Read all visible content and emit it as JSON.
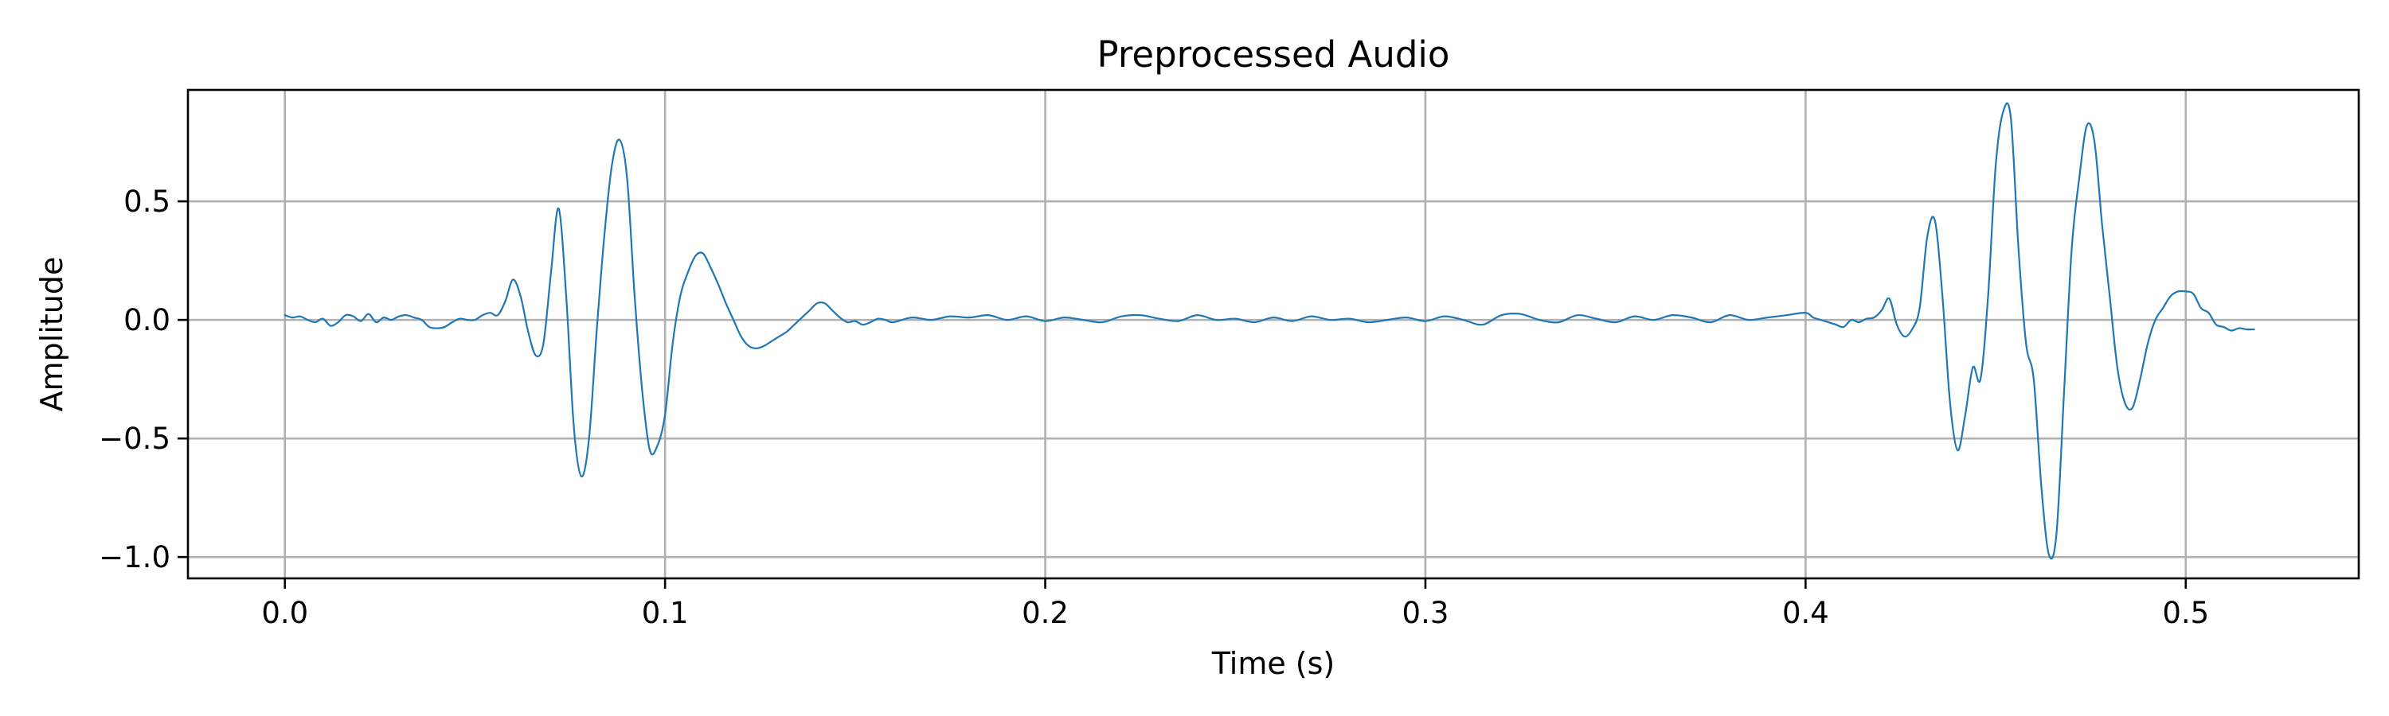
{
  "chart_data": {
    "type": "line",
    "title": "Preprocessed Audio",
    "xlabel": "Time (s)",
    "ylabel": "Amplitude",
    "xlim": [
      -0.0255,
      0.5455
    ],
    "ylim": [
      -1.09,
      0.97
    ],
    "xticks": [
      0.0,
      0.1,
      0.2,
      0.3,
      0.4,
      0.5
    ],
    "xtick_labels": [
      "0.0",
      "0.1",
      "0.2",
      "0.3",
      "0.4",
      "0.5"
    ],
    "yticks": [
      -1.0,
      -0.5,
      0.0,
      0.5
    ],
    "ytick_labels": [
      "−1.0",
      "−0.5",
      "0.0",
      "0.5"
    ],
    "grid": true,
    "legend": "none",
    "series_color": "#1f77b4",
    "series": [
      {
        "x": [
          0.0,
          0.002,
          0.004,
          0.006,
          0.008,
          0.01,
          0.012,
          0.014,
          0.016,
          0.018,
          0.02,
          0.022,
          0.024,
          0.026,
          0.028,
          0.03,
          0.032,
          0.034,
          0.036,
          0.038,
          0.04,
          0.042,
          0.044,
          0.046,
          0.048,
          0.05,
          0.052,
          0.054,
          0.056,
          0.058,
          0.06,
          0.062,
          0.064,
          0.066,
          0.068,
          0.07,
          0.072,
          0.074,
          0.076,
          0.078,
          0.08,
          0.082,
          0.084,
          0.086,
          0.088,
          0.09,
          0.092,
          0.094,
          0.096,
          0.098,
          0.1,
          0.102,
          0.104,
          0.106,
          0.108,
          0.11,
          0.112,
          0.114,
          0.116,
          0.118,
          0.12,
          0.122,
          0.124,
          0.126,
          0.128,
          0.13,
          0.132,
          0.134,
          0.136,
          0.138,
          0.14,
          0.142,
          0.144,
          0.146,
          0.148,
          0.15,
          0.152,
          0.154,
          0.156,
          0.158,
          0.16,
          0.165,
          0.17,
          0.175,
          0.18,
          0.185,
          0.19,
          0.195,
          0.2,
          0.205,
          0.21,
          0.215,
          0.22,
          0.225,
          0.23,
          0.235,
          0.24,
          0.245,
          0.25,
          0.255,
          0.26,
          0.265,
          0.27,
          0.275,
          0.28,
          0.285,
          0.29,
          0.295,
          0.3,
          0.305,
          0.31,
          0.315,
          0.32,
          0.325,
          0.33,
          0.335,
          0.34,
          0.345,
          0.35,
          0.355,
          0.36,
          0.365,
          0.37,
          0.375,
          0.38,
          0.385,
          0.39,
          0.395,
          0.4,
          0.402,
          0.404,
          0.406,
          0.408,
          0.41,
          0.412,
          0.414,
          0.416,
          0.418,
          0.42,
          0.422,
          0.424,
          0.426,
          0.428,
          0.43,
          0.432,
          0.434,
          0.436,
          0.438,
          0.44,
          0.442,
          0.444,
          0.446,
          0.448,
          0.45,
          0.452,
          0.454,
          0.456,
          0.458,
          0.46,
          0.462,
          0.464,
          0.466,
          0.468,
          0.47,
          0.472,
          0.474,
          0.476,
          0.478,
          0.48,
          0.482,
          0.484,
          0.486,
          0.488,
          0.49,
          0.492,
          0.494,
          0.496,
          0.498,
          0.5,
          0.502,
          0.504,
          0.506,
          0.508,
          0.51,
          0.512,
          0.514,
          0.516,
          0.518
        ],
        "y": [
          0.02,
          0.01,
          0.015,
          0.0,
          -0.01,
          0.005,
          -0.025,
          -0.01,
          0.02,
          0.015,
          -0.005,
          0.025,
          -0.01,
          0.01,
          0.0,
          0.015,
          0.02,
          0.01,
          0.0,
          -0.03,
          -0.035,
          -0.03,
          -0.01,
          0.005,
          0.0,
          0.0,
          0.02,
          0.03,
          0.02,
          0.08,
          0.17,
          0.1,
          -0.05,
          -0.15,
          -0.1,
          0.2,
          0.47,
          0.1,
          -0.45,
          -0.66,
          -0.5,
          -0.05,
          0.35,
          0.65,
          0.76,
          0.6,
          0.1,
          -0.3,
          -0.55,
          -0.53,
          -0.4,
          -0.1,
          0.1,
          0.2,
          0.27,
          0.28,
          0.22,
          0.15,
          0.07,
          0.0,
          -0.07,
          -0.11,
          -0.12,
          -0.11,
          -0.09,
          -0.07,
          -0.05,
          -0.02,
          0.01,
          0.04,
          0.07,
          0.07,
          0.04,
          0.01,
          -0.01,
          -0.005,
          -0.02,
          -0.01,
          0.005,
          0.0,
          -0.01,
          0.01,
          0.0,
          0.015,
          0.01,
          0.02,
          0.0,
          0.015,
          -0.005,
          0.01,
          0.0,
          -0.01,
          0.015,
          0.02,
          0.005,
          -0.005,
          0.02,
          0.0,
          0.005,
          -0.01,
          0.01,
          -0.005,
          0.015,
          0.0,
          0.005,
          -0.01,
          0.0,
          0.01,
          -0.005,
          0.015,
          0.0,
          -0.02,
          0.02,
          0.025,
          0.0,
          -0.01,
          0.02,
          0.005,
          -0.01,
          0.015,
          0.0,
          0.02,
          0.01,
          -0.01,
          0.02,
          0.0,
          0.01,
          0.02,
          0.03,
          0.01,
          0.0,
          -0.01,
          -0.02,
          -0.03,
          0.0,
          -0.01,
          0.005,
          0.01,
          0.04,
          0.09,
          -0.02,
          -0.07,
          -0.04,
          0.05,
          0.35,
          0.42,
          0.1,
          -0.35,
          -0.55,
          -0.4,
          -0.2,
          -0.25,
          0.1,
          0.65,
          0.88,
          0.85,
          0.3,
          -0.1,
          -0.25,
          -0.7,
          -0.99,
          -0.9,
          -0.3,
          0.3,
          0.6,
          0.82,
          0.75,
          0.4,
          0.1,
          -0.2,
          -0.35,
          -0.37,
          -0.25,
          -0.1,
          0.0,
          0.05,
          0.1,
          0.12,
          0.12,
          0.11,
          0.05,
          0.03,
          -0.02,
          -0.03,
          -0.045,
          -0.035,
          -0.04,
          -0.04
        ]
      }
    ]
  }
}
